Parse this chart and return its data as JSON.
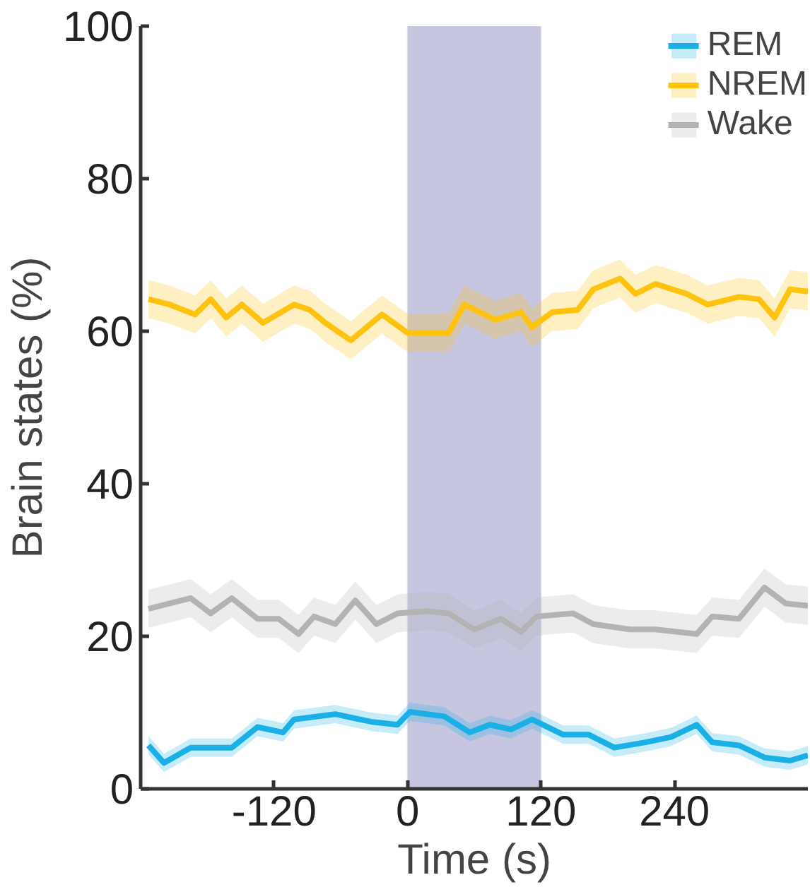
{
  "chart_data": {
    "type": "line",
    "xlabel": "Time (s)",
    "ylabel": "Brain states (%)",
    "xlim": [
      -240,
      360
    ],
    "xticks": [
      -120,
      0,
      120,
      240
    ],
    "ylim": [
      0,
      100
    ],
    "yticks": [
      0,
      20,
      40,
      60,
      80,
      100
    ],
    "grid": false,
    "legend": "top right",
    "marker": "none",
    "line_style": "solid",
    "bands": [
      {
        "axis": "x",
        "from": 0,
        "to": 120,
        "color": "#c6c6e0"
      }
    ],
    "series": [
      {
        "name": "REM",
        "color": "#1ab0e6",
        "x": [
          -233,
          -219,
          -195,
          -158,
          -135,
          -112,
          -102,
          -65,
          -33,
          -9,
          2,
          33,
          56,
          74,
          93,
          112,
          140,
          163,
          186,
          214,
          237,
          260,
          274,
          298,
          321,
          344,
          360
        ],
        "values": [
          5.7,
          3.4,
          5.4,
          5.4,
          8.1,
          7.4,
          9.1,
          9.8,
          8.8,
          8.4,
          10.1,
          9.5,
          7.4,
          8.4,
          7.8,
          9.1,
          7.1,
          7.1,
          5.4,
          6.1,
          6.8,
          8.4,
          6.1,
          5.7,
          4.1,
          3.7,
          4.4
        ],
        "lower": [
          4.5,
          2.2,
          4.2,
          4.2,
          6.9,
          6.2,
          7.9,
          8.6,
          7.6,
          7.2,
          8.9,
          8.3,
          6.2,
          7.2,
          6.6,
          7.9,
          5.9,
          5.9,
          4.2,
          4.9,
          5.6,
          7.2,
          4.9,
          4.5,
          2.9,
          2.5,
          3.2
        ],
        "upper": [
          6.9,
          4.6,
          6.6,
          6.6,
          9.3,
          8.6,
          10.3,
          11.0,
          10.0,
          9.6,
          11.3,
          10.7,
          8.6,
          9.6,
          9.0,
          10.3,
          8.3,
          8.3,
          6.6,
          7.3,
          8.0,
          9.6,
          7.3,
          6.9,
          5.3,
          4.9,
          5.6
        ]
      },
      {
        "name": "NREM",
        "color": "#ffc20e",
        "x": [
          -233,
          -214,
          -191,
          -177,
          -163,
          -149,
          -130,
          -102,
          -88,
          -74,
          -51,
          -23,
          0,
          14,
          37,
          51,
          79,
          102,
          112,
          130,
          153,
          167,
          191,
          205,
          223,
          251,
          270,
          298,
          316,
          330,
          344,
          360
        ],
        "values": [
          64.2,
          63.5,
          62.2,
          64.2,
          61.8,
          63.5,
          61.1,
          63.5,
          62.8,
          61.1,
          58.8,
          62.2,
          59.8,
          59.8,
          59.8,
          63.5,
          61.5,
          62.5,
          60.5,
          62.5,
          62.8,
          65.5,
          66.9,
          64.9,
          66.2,
          64.9,
          63.5,
          64.5,
          64.2,
          61.8,
          65.5,
          65.2
        ],
        "lower": [
          61.7,
          61.0,
          59.7,
          61.7,
          59.3,
          61.0,
          58.6,
          61.0,
          60.3,
          58.6,
          56.3,
          59.7,
          57.3,
          57.3,
          57.3,
          61.0,
          59.0,
          60.0,
          58.0,
          60.0,
          60.3,
          63.0,
          64.4,
          62.4,
          63.7,
          62.4,
          61.0,
          62.0,
          61.7,
          59.3,
          63.0,
          62.7
        ],
        "upper": [
          66.7,
          66.0,
          64.7,
          66.7,
          64.3,
          66.0,
          63.6,
          66.0,
          65.3,
          63.6,
          61.3,
          64.7,
          62.3,
          62.3,
          62.3,
          66.0,
          64.0,
          65.0,
          63.0,
          65.0,
          65.3,
          68.0,
          69.4,
          67.4,
          68.7,
          67.4,
          66.0,
          67.0,
          66.7,
          64.3,
          68.0,
          67.7
        ]
      },
      {
        "name": "Wake",
        "color": "#b3b3b3",
        "x": [
          -233,
          -195,
          -177,
          -158,
          -135,
          -116,
          -98,
          -84,
          -65,
          -47,
          -28,
          -9,
          19,
          37,
          60,
          84,
          102,
          116,
          149,
          167,
          200,
          223,
          260,
          274,
          298,
          321,
          340,
          360
        ],
        "values": [
          23.6,
          25.0,
          23.0,
          25.0,
          22.3,
          22.3,
          20.3,
          22.6,
          21.6,
          24.7,
          21.6,
          23.0,
          23.3,
          23.0,
          20.9,
          22.3,
          20.6,
          22.6,
          23.0,
          21.6,
          20.9,
          20.9,
          20.3,
          22.6,
          22.3,
          26.4,
          24.3,
          24.0
        ],
        "lower": [
          21.1,
          22.5,
          20.5,
          22.5,
          19.8,
          19.8,
          17.8,
          20.1,
          19.1,
          22.2,
          19.1,
          20.5,
          20.8,
          20.5,
          18.4,
          19.8,
          18.1,
          20.1,
          20.5,
          19.1,
          18.4,
          18.4,
          17.8,
          20.1,
          19.8,
          23.9,
          21.8,
          21.5
        ],
        "upper": [
          26.1,
          27.5,
          25.5,
          27.5,
          24.8,
          24.8,
          22.8,
          25.1,
          24.1,
          27.2,
          24.1,
          25.5,
          25.8,
          25.5,
          23.4,
          24.8,
          23.1,
          25.1,
          25.5,
          24.1,
          23.4,
          23.4,
          22.8,
          25.1,
          24.8,
          28.9,
          26.8,
          26.5
        ]
      }
    ]
  }
}
